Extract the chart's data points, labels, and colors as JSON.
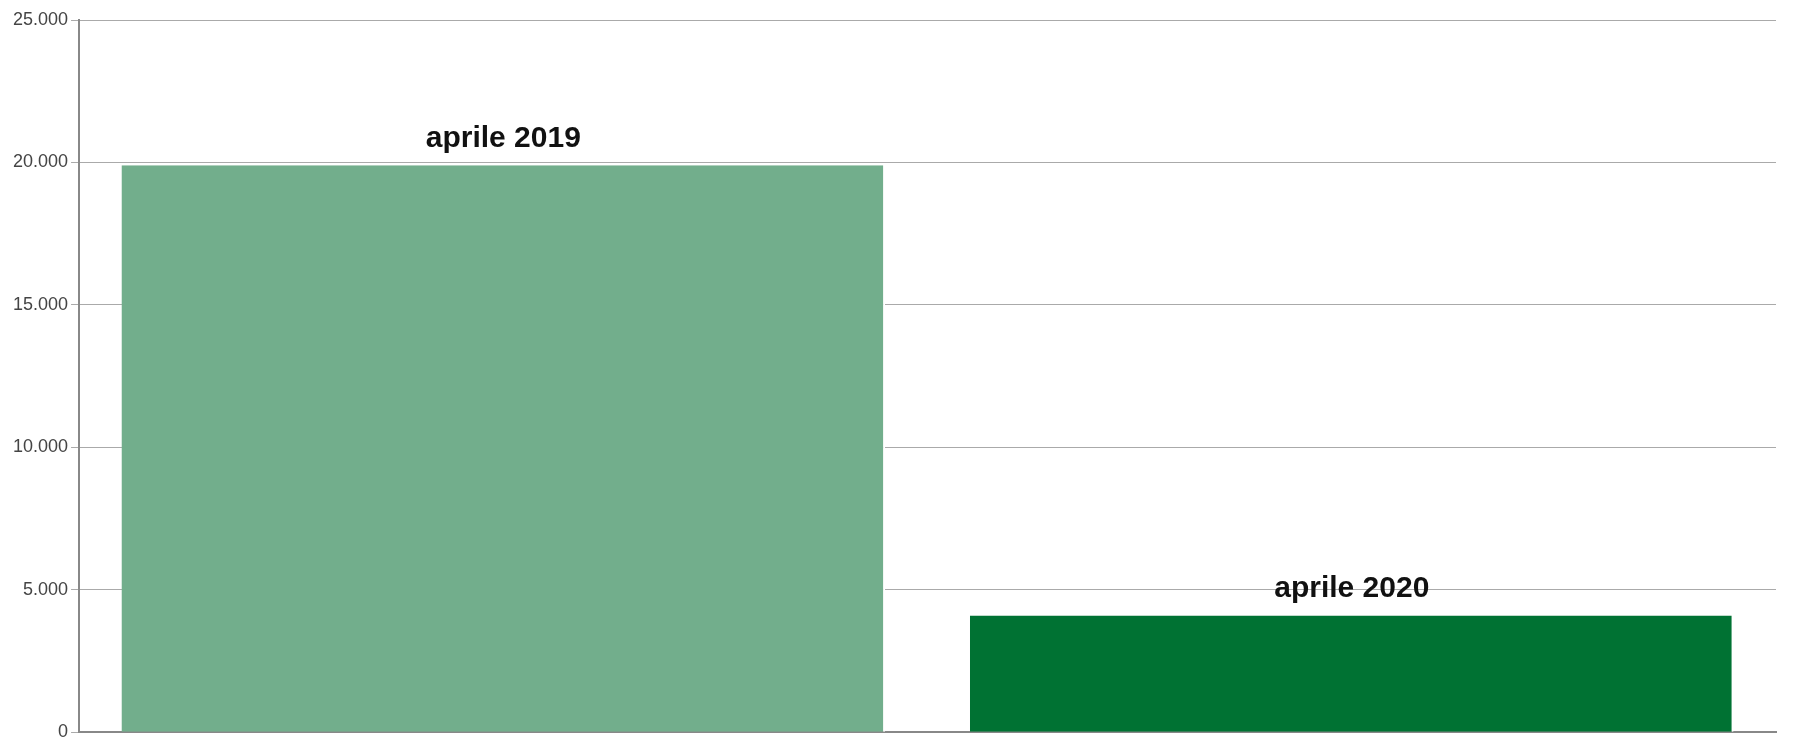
{
  "chart_data": {
    "type": "bar",
    "categories": [
      "aprile 2019",
      "aprile 2020"
    ],
    "series": [
      {
        "colors": [
          "#72ae8c",
          "#007233"
        ],
        "values": [
          19900,
          4100
        ]
      }
    ],
    "ylim": [
      0,
      25000
    ],
    "yticks": [
      {
        "value": 0,
        "label": "0"
      },
      {
        "value": 5000,
        "label": "5.000"
      },
      {
        "value": 10000,
        "label": "10.000"
      },
      {
        "value": 15000,
        "label": "15.000"
      },
      {
        "value": 20000,
        "label": "20.000"
      },
      {
        "value": 25000,
        "label": "25.000"
      }
    ],
    "grid": "y",
    "tick_labels": "y",
    "legend": false
  }
}
